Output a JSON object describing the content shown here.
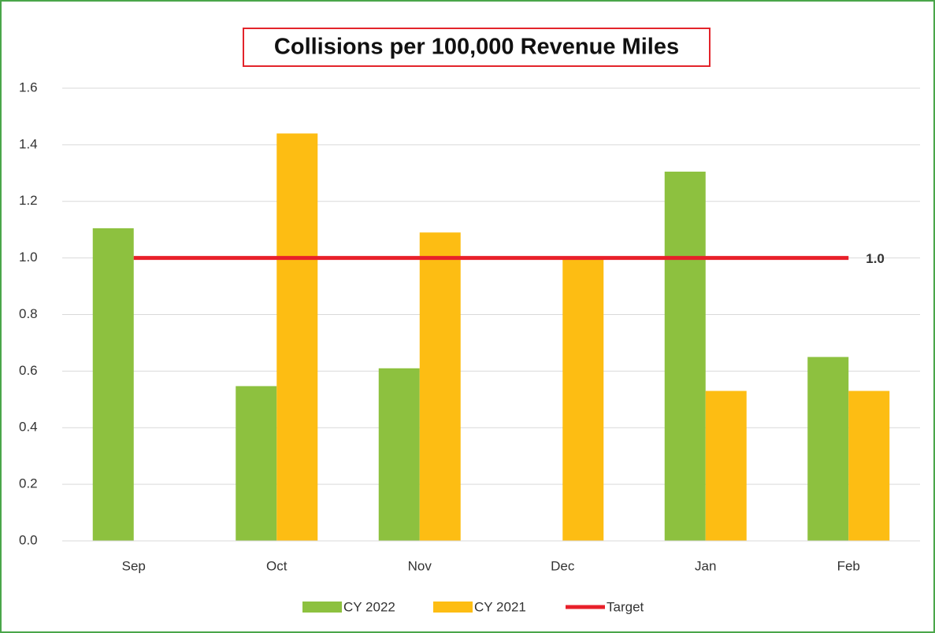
{
  "chart_data": {
    "type": "bar",
    "title": "Collisions per 100,000 Revenue Miles",
    "categories": [
      "Sep",
      "Oct",
      "Nov",
      "Dec",
      "Jan",
      "Feb"
    ],
    "series": [
      {
        "name": "CY 2022",
        "color": "#8dc13f",
        "values": [
          1.105,
          0.547,
          0.61,
          null,
          1.305,
          0.65
        ]
      },
      {
        "name": "CY 2021",
        "color": "#fdbd13",
        "values": [
          null,
          1.44,
          1.09,
          1.0,
          0.53,
          0.53
        ]
      },
      {
        "name": "Target",
        "type": "line",
        "color": "#e8202a",
        "values": [
          1.0,
          1.0,
          1.0,
          1.0,
          1.0,
          1.0
        ],
        "value_labels": [
          null,
          null,
          null,
          null,
          null,
          "1.0"
        ]
      }
    ],
    "ylim": [
      0,
      1.6
    ],
    "yticks": [
      {
        "value": 0,
        "label": "0.0"
      },
      0.2,
      0.4,
      0.6,
      0.8,
      {
        "value": 1,
        "label": "1.0"
      },
      1.2,
      1.4,
      1.6
    ],
    "grid": true,
    "legend": "bottom"
  }
}
